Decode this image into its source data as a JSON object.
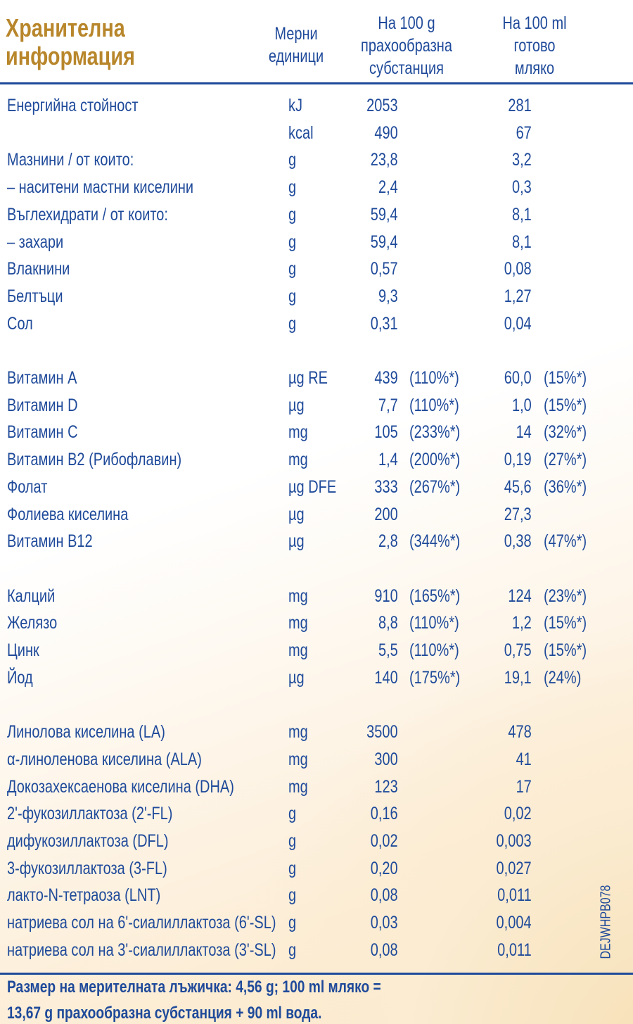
{
  "header": {
    "title_lines": [
      "Хранителна",
      "информация"
    ],
    "columns": [
      {
        "lines": [
          "Мерни",
          "единици"
        ]
      },
      {
        "lines": [
          "На 100 g",
          "прахообразна",
          "субстанция"
        ]
      },
      {
        "lines": [
          "На 100 ml",
          "готово",
          "мляко"
        ]
      }
    ]
  },
  "table": {
    "groups": [
      [
        {
          "name": "Енергийна стойност",
          "unit": "kJ",
          "per_100g": "2053",
          "per_100ml": "281"
        },
        {
          "unit": "kcal",
          "per_100g": "490",
          "per_100ml": "67"
        },
        {
          "name": "Мазнини / от които:",
          "unit": "g",
          "per_100g": "23,8",
          "per_100ml": "3,2"
        },
        {
          "name": "– наситени мастни киселини",
          "unit": "g",
          "per_100g": "2,4",
          "per_100ml": "0,3"
        },
        {
          "name": "Въглехидрати / от които:",
          "unit": "g",
          "per_100g": "59,4",
          "per_100ml": "8,1"
        },
        {
          "name": "– захари",
          "unit": "g",
          "per_100g": "59,4",
          "per_100ml": "8,1"
        },
        {
          "name": "Влакнини",
          "unit": "g",
          "per_100g": "0,57",
          "per_100ml": "0,08"
        },
        {
          "name": "Белтъци",
          "unit": "g",
          "per_100g": "9,3",
          "per_100ml": "1,27"
        },
        {
          "name": "Сол",
          "unit": "g",
          "per_100g": "0,31",
          "per_100ml": "0,04"
        }
      ],
      [
        {
          "name": "Витамин A",
          "unit": "µg RE",
          "per_100g": "439",
          "pct_100g": "(110%*)",
          "per_100ml": "60,0",
          "pct_100ml": "(15%*)"
        },
        {
          "name": "Витамин D",
          "unit": "µg",
          "per_100g": "7,7",
          "pct_100g": "(110%*)",
          "per_100ml": "1,0",
          "pct_100ml": "(15%*)"
        },
        {
          "name": "Витамин C",
          "unit": "mg",
          "per_100g": "105",
          "pct_100g": "(233%*)",
          "per_100ml": "14",
          "pct_100ml": "(32%*)"
        },
        {
          "name": "Витамин B2 (Рибофлавин)",
          "unit": "mg",
          "per_100g": "1,4",
          "pct_100g": "(200%*)",
          "per_100ml": "0,19",
          "pct_100ml": "(27%*)"
        },
        {
          "name": "Фолат",
          "unit": "µg DFE",
          "per_100g": "333",
          "pct_100g": "(267%*)",
          "per_100ml": "45,6",
          "pct_100ml": "(36%*)"
        },
        {
          "name": "Фолиева киселина",
          "unit": "µg",
          "per_100g": "200",
          "per_100ml": "27,3"
        },
        {
          "name": "Витамин B12",
          "unit": "µg",
          "per_100g": "2,8",
          "pct_100g": "(344%*)",
          "per_100ml": "0,38",
          "pct_100ml": "(47%*)"
        }
      ],
      [
        {
          "name": "Калций",
          "unit": "mg",
          "per_100g": "910",
          "pct_100g": "(165%*)",
          "per_100ml": "124",
          "pct_100ml": "(23%*)"
        },
        {
          "name": "Желязо",
          "unit": "mg",
          "per_100g": "8,8",
          "pct_100g": "(110%*)",
          "per_100ml": "1,2",
          "pct_100ml": "(15%*)"
        },
        {
          "name": "Цинк",
          "unit": "mg",
          "per_100g": "5,5",
          "pct_100g": "(110%*)",
          "per_100ml": "0,75",
          "pct_100ml": "(15%*)"
        },
        {
          "name": "Йод",
          "unit": "µg",
          "per_100g": "140",
          "pct_100g": "(175%*)",
          "per_100ml": "19,1",
          "pct_100ml": "(24%)"
        }
      ],
      [
        {
          "name": "Линолова киселина (LA)",
          "unit": "mg",
          "per_100g": "3500",
          "per_100ml": "478"
        },
        {
          "name": "α-линоленова киселина (ALA)",
          "unit": "mg",
          "per_100g": "300",
          "per_100ml": "41"
        },
        {
          "name": "Докозахексаенова киселина (DHA)",
          "unit": "mg",
          "per_100g": "123",
          "per_100ml": "17"
        },
        {
          "name": "2'-фукозиллактоза (2'-FL)",
          "unit": "g",
          "per_100g": "0,16",
          "per_100ml": "0,02"
        },
        {
          "name": "дифукозиллактоза (DFL)",
          "unit": "g",
          "per_100g": "0,02",
          "per_100ml": "0,003"
        },
        {
          "name": "3-фукозиллактоза (3-FL)",
          "unit": "g",
          "per_100g": "0,20",
          "per_100ml": "0,027"
        },
        {
          "name": "лакто-N-тетраоза (LNT)",
          "unit": "g",
          "per_100g": "0,08",
          "per_100ml": "0,011"
        },
        {
          "name": "натриева сол на 6'-сиалиллактоза (6'-SL)",
          "unit": "g",
          "per_100g": "0,03",
          "per_100ml": "0,004"
        },
        {
          "name": "натриева сол на 3'-сиалиллактоза (3'-SL)",
          "unit": "g",
          "per_100g": "0,08",
          "per_100ml": "0,011"
        }
      ]
    ]
  },
  "footer": {
    "lines": [
      "Размер на мерителната лъжичка: 4,56 g; 100 ml мляко =",
      "13,67 g прахообразна субстанция + 90 ml вода."
    ]
  },
  "code": "DEJWHPB078"
}
